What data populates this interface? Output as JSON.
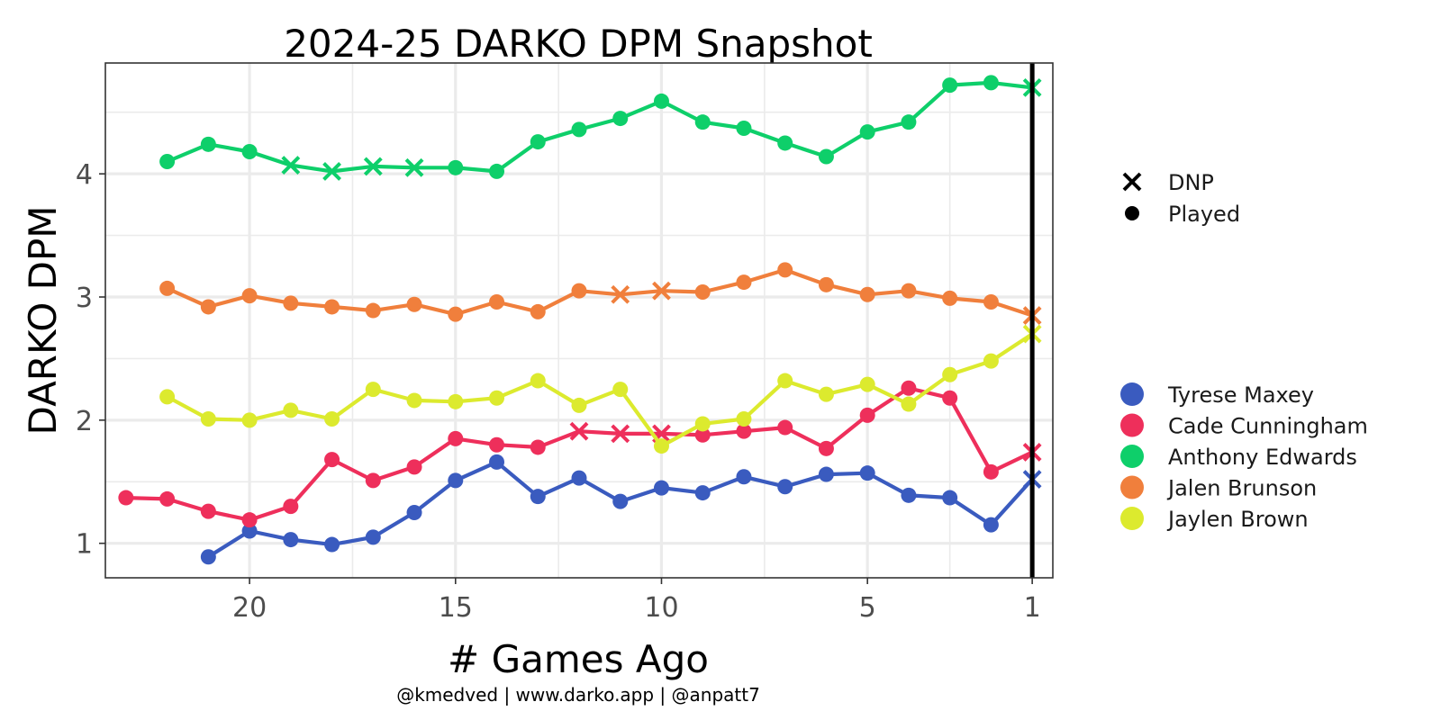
{
  "chart_data": {
    "type": "line",
    "title": "2024-25 DARKO DPM Snapshot",
    "xlabel": "# Games Ago",
    "ylabel": "DARKO DPM",
    "caption": "@kmedved | www.darko.app | @anpatt7",
    "x_reversed": true,
    "xlim": [
      23.5,
      0.5
    ],
    "ylim": [
      0.72,
      4.9
    ],
    "x_ticks": [
      20,
      15,
      10,
      5,
      1
    ],
    "y_ticks": [
      1,
      2,
      3,
      4
    ],
    "grid": true,
    "vline_x": 1,
    "shape_legend": [
      {
        "marker": "x",
        "label": "DNP"
      },
      {
        "marker": "dot",
        "label": "Played"
      }
    ],
    "series": [
      {
        "name": "Tyrese Maxey",
        "color": "#3a5bbf",
        "points": [
          {
            "x": 21,
            "y": 0.89,
            "m": "o"
          },
          {
            "x": 20,
            "y": 1.1,
            "m": "o"
          },
          {
            "x": 19,
            "y": 1.03,
            "m": "o"
          },
          {
            "x": 18,
            "y": 0.99,
            "m": "o"
          },
          {
            "x": 17,
            "y": 1.05,
            "m": "o"
          },
          {
            "x": 16,
            "y": 1.25,
            "m": "o"
          },
          {
            "x": 15,
            "y": 1.51,
            "m": "o"
          },
          {
            "x": 14,
            "y": 1.66,
            "m": "o"
          },
          {
            "x": 13,
            "y": 1.38,
            "m": "o"
          },
          {
            "x": 12,
            "y": 1.53,
            "m": "o"
          },
          {
            "x": 11,
            "y": 1.34,
            "m": "o"
          },
          {
            "x": 10,
            "y": 1.45,
            "m": "o"
          },
          {
            "x": 9,
            "y": 1.41,
            "m": "o"
          },
          {
            "x": 8,
            "y": 1.54,
            "m": "o"
          },
          {
            "x": 7,
            "y": 1.46,
            "m": "o"
          },
          {
            "x": 6,
            "y": 1.56,
            "m": "o"
          },
          {
            "x": 5,
            "y": 1.57,
            "m": "o"
          },
          {
            "x": 4,
            "y": 1.39,
            "m": "o"
          },
          {
            "x": 3,
            "y": 1.37,
            "m": "o"
          },
          {
            "x": 2,
            "y": 1.15,
            "m": "o"
          },
          {
            "x": 1,
            "y": 1.52,
            "m": "x"
          }
        ]
      },
      {
        "name": "Cade Cunningham",
        "color": "#ee2f5b",
        "points": [
          {
            "x": 23,
            "y": 1.37,
            "m": "o"
          },
          {
            "x": 22,
            "y": 1.36,
            "m": "o"
          },
          {
            "x": 21,
            "y": 1.26,
            "m": "o"
          },
          {
            "x": 20,
            "y": 1.19,
            "m": "o"
          },
          {
            "x": 19,
            "y": 1.3,
            "m": "o"
          },
          {
            "x": 18,
            "y": 1.68,
            "m": "o"
          },
          {
            "x": 17,
            "y": 1.51,
            "m": "o"
          },
          {
            "x": 16,
            "y": 1.62,
            "m": "o"
          },
          {
            "x": 15,
            "y": 1.85,
            "m": "o"
          },
          {
            "x": 14,
            "y": 1.8,
            "m": "o"
          },
          {
            "x": 13,
            "y": 1.78,
            "m": "o"
          },
          {
            "x": 12,
            "y": 1.91,
            "m": "x"
          },
          {
            "x": 11,
            "y": 1.89,
            "m": "x"
          },
          {
            "x": 10,
            "y": 1.89,
            "m": "x"
          },
          {
            "x": 9,
            "y": 1.88,
            "m": "o"
          },
          {
            "x": 8,
            "y": 1.91,
            "m": "o"
          },
          {
            "x": 7,
            "y": 1.94,
            "m": "o"
          },
          {
            "x": 6,
            "y": 1.77,
            "m": "o"
          },
          {
            "x": 5,
            "y": 2.04,
            "m": "o"
          },
          {
            "x": 4,
            "y": 2.26,
            "m": "o"
          },
          {
            "x": 3,
            "y": 2.18,
            "m": "o"
          },
          {
            "x": 2,
            "y": 1.58,
            "m": "o"
          },
          {
            "x": 1,
            "y": 1.74,
            "m": "x"
          }
        ]
      },
      {
        "name": "Anthony Edwards",
        "color": "#0ecf6a",
        "points": [
          {
            "x": 22,
            "y": 4.1,
            "m": "o"
          },
          {
            "x": 21,
            "y": 4.24,
            "m": "o"
          },
          {
            "x": 20,
            "y": 4.18,
            "m": "o"
          },
          {
            "x": 19,
            "y": 4.07,
            "m": "x"
          },
          {
            "x": 18,
            "y": 4.02,
            "m": "x"
          },
          {
            "x": 17,
            "y": 4.06,
            "m": "x"
          },
          {
            "x": 16,
            "y": 4.05,
            "m": "x"
          },
          {
            "x": 15,
            "y": 4.05,
            "m": "o"
          },
          {
            "x": 14,
            "y": 4.02,
            "m": "o"
          },
          {
            "x": 13,
            "y": 4.26,
            "m": "o"
          },
          {
            "x": 12,
            "y": 4.36,
            "m": "o"
          },
          {
            "x": 11,
            "y": 4.45,
            "m": "o"
          },
          {
            "x": 10,
            "y": 4.59,
            "m": "o"
          },
          {
            "x": 9,
            "y": 4.42,
            "m": "o"
          },
          {
            "x": 8,
            "y": 4.37,
            "m": "o"
          },
          {
            "x": 7,
            "y": 4.25,
            "m": "o"
          },
          {
            "x": 6,
            "y": 4.14,
            "m": "o"
          },
          {
            "x": 5,
            "y": 4.34,
            "m": "o"
          },
          {
            "x": 4,
            "y": 4.42,
            "m": "o"
          },
          {
            "x": 3,
            "y": 4.72,
            "m": "o"
          },
          {
            "x": 2,
            "y": 4.74,
            "m": "o"
          },
          {
            "x": 1,
            "y": 4.7,
            "m": "x"
          }
        ]
      },
      {
        "name": "Jalen Brunson",
        "color": "#f07f3c",
        "points": [
          {
            "x": 22,
            "y": 3.07,
            "m": "o"
          },
          {
            "x": 21,
            "y": 2.92,
            "m": "o"
          },
          {
            "x": 20,
            "y": 3.01,
            "m": "o"
          },
          {
            "x": 19,
            "y": 2.95,
            "m": "o"
          },
          {
            "x": 18,
            "y": 2.92,
            "m": "o"
          },
          {
            "x": 17,
            "y": 2.89,
            "m": "o"
          },
          {
            "x": 16,
            "y": 2.94,
            "m": "o"
          },
          {
            "x": 15,
            "y": 2.86,
            "m": "o"
          },
          {
            "x": 14,
            "y": 2.96,
            "m": "o"
          },
          {
            "x": 13,
            "y": 2.88,
            "m": "o"
          },
          {
            "x": 12,
            "y": 3.05,
            "m": "o"
          },
          {
            "x": 11,
            "y": 3.02,
            "m": "x"
          },
          {
            "x": 10,
            "y": 3.05,
            "m": "x"
          },
          {
            "x": 9,
            "y": 3.04,
            "m": "o"
          },
          {
            "x": 8,
            "y": 3.12,
            "m": "o"
          },
          {
            "x": 7,
            "y": 3.22,
            "m": "o"
          },
          {
            "x": 6,
            "y": 3.1,
            "m": "o"
          },
          {
            "x": 5,
            "y": 3.02,
            "m": "o"
          },
          {
            "x": 4,
            "y": 3.05,
            "m": "o"
          },
          {
            "x": 3,
            "y": 2.99,
            "m": "o"
          },
          {
            "x": 2,
            "y": 2.96,
            "m": "o"
          },
          {
            "x": 1,
            "y": 2.85,
            "m": "x"
          }
        ]
      },
      {
        "name": "Jaylen Brown",
        "color": "#dcea2e",
        "points": [
          {
            "x": 22,
            "y": 2.19,
            "m": "o"
          },
          {
            "x": 21,
            "y": 2.01,
            "m": "o"
          },
          {
            "x": 20,
            "y": 2.0,
            "m": "o"
          },
          {
            "x": 19,
            "y": 2.08,
            "m": "o"
          },
          {
            "x": 18,
            "y": 2.01,
            "m": "o"
          },
          {
            "x": 17,
            "y": 2.25,
            "m": "o"
          },
          {
            "x": 16,
            "y": 2.16,
            "m": "o"
          },
          {
            "x": 15,
            "y": 2.15,
            "m": "o"
          },
          {
            "x": 14,
            "y": 2.18,
            "m": "o"
          },
          {
            "x": 13,
            "y": 2.32,
            "m": "o"
          },
          {
            "x": 12,
            "y": 2.12,
            "m": "o"
          },
          {
            "x": 11,
            "y": 2.25,
            "m": "o"
          },
          {
            "x": 10,
            "y": 1.79,
            "m": "o"
          },
          {
            "x": 9,
            "y": 1.97,
            "m": "o"
          },
          {
            "x": 8,
            "y": 2.01,
            "m": "o"
          },
          {
            "x": 7,
            "y": 2.32,
            "m": "o"
          },
          {
            "x": 6,
            "y": 2.21,
            "m": "o"
          },
          {
            "x": 5,
            "y": 2.29,
            "m": "o"
          },
          {
            "x": 4,
            "y": 2.13,
            "m": "o"
          },
          {
            "x": 3,
            "y": 2.37,
            "m": "o"
          },
          {
            "x": 2,
            "y": 2.48,
            "m": "o"
          },
          {
            "x": 1,
            "y": 2.7,
            "m": "x"
          }
        ]
      }
    ]
  }
}
